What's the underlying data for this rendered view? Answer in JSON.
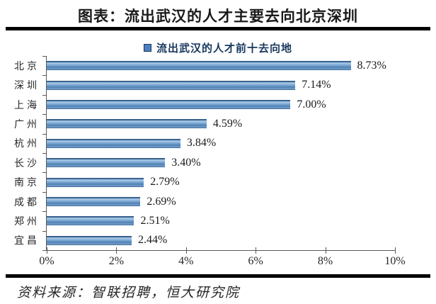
{
  "title": "图表：流出武汉的人才主要去向北京深圳",
  "legend": {
    "label": "流出武汉的人才前十去向地"
  },
  "source": "资料来源：智联招聘，恒大研究院",
  "colors": {
    "bar_body": "#5d8fc0",
    "bar_edge": "#2d5986",
    "legend_marker": "#4d7ebf",
    "legend_text": "#17375e",
    "axis_line": "#595959",
    "rule": "#000000"
  },
  "chart_data": {
    "type": "bar",
    "orientation": "horizontal",
    "title": "流出武汉的人才前十去向地",
    "categories": [
      "北京",
      "深圳",
      "上海",
      "广州",
      "杭州",
      "长沙",
      "南京",
      "成都",
      "郑州",
      "宜昌"
    ],
    "values": [
      8.73,
      7.14,
      7.0,
      4.59,
      3.84,
      3.4,
      2.79,
      2.69,
      2.51,
      2.44
    ],
    "value_labels": [
      "8.73%",
      "7.14%",
      "7.00%",
      "4.59%",
      "3.84%",
      "3.40%",
      "2.79%",
      "2.69%",
      "2.51%",
      "2.44%"
    ],
    "xlabel": "",
    "ylabel": "",
    "xlim": [
      0,
      10
    ],
    "x_ticks": [
      "0%",
      "2%",
      "4%",
      "6%",
      "8%",
      "10%"
    ],
    "x_tick_values": [
      0,
      2,
      4,
      6,
      8,
      10
    ],
    "grid": false,
    "legend_position": "top",
    "data_labels": "outside-end"
  }
}
